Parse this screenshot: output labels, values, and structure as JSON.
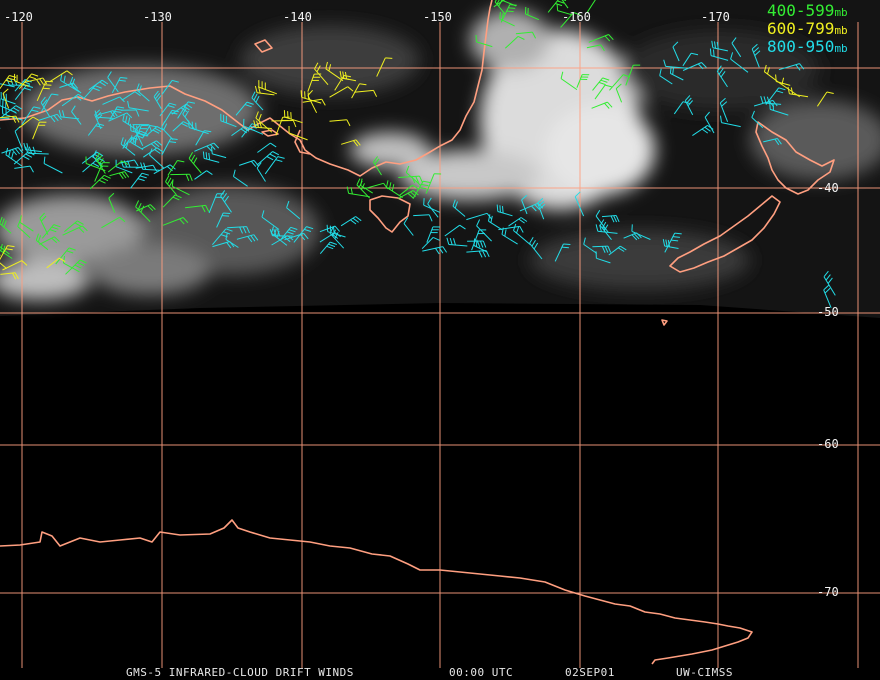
{
  "longitude_labels": [
    "-120",
    "-130",
    "-140",
    "-150",
    "-160",
    "-170"
  ],
  "latitude_labels": [
    "-40",
    "-50",
    "-60",
    "-70"
  ],
  "legend": [
    {
      "range": "400-599",
      "unit": "mb",
      "color": "#33ee33"
    },
    {
      "range": "600-799",
      "unit": "mb",
      "color": "#f0f020"
    },
    {
      "range": "800-950",
      "unit": "mb",
      "color": "#22dde8"
    }
  ],
  "footer": {
    "product": "GMS-5 INFRARED-CLOUD DRIFT WINDS",
    "time": "00:00 UTC",
    "date": "02SEP01",
    "source": "UW-CIMSS"
  },
  "colors": {
    "coast": "#ff9f80",
    "grid": "#ff9f80",
    "background": "#000000"
  }
}
